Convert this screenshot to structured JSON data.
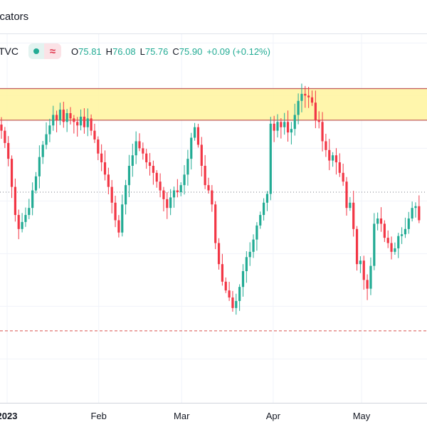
{
  "toolbar": {
    "indicators_label": "icators"
  },
  "legend": {
    "symbol": "TVC",
    "open_key": "O",
    "open": "75.81",
    "high_key": "H",
    "high": "76.08",
    "low_key": "L",
    "low": "75.76",
    "close_key": "C",
    "close": "75.90",
    "change": "+0.09 (+0.12%)"
  },
  "colors": {
    "up": "#22ab94",
    "down": "#f23645",
    "zone_fill": "#fff59d",
    "zone_border": "#c05a5a",
    "grid": "#f0f3fa"
  },
  "chart_data": {
    "type": "candlestick",
    "ylim": [
      65.5,
      86.5
    ],
    "zone": [
      81.6,
      83.4
    ],
    "hlines": [
      {
        "price": 77.5,
        "style": "dotted",
        "color": "#787b86"
      },
      {
        "price": 69.6,
        "style": "dashed",
        "color": "#d9534f"
      }
    ],
    "x_tick_labels": [
      {
        "label": "2023",
        "x": 2023.0,
        "year": true
      },
      {
        "label": "Feb",
        "x": 2023.085
      },
      {
        "label": "Mar",
        "x": 2023.162
      },
      {
        "label": "Apr",
        "x": 2023.247
      },
      {
        "label": "May",
        "x": 2023.329
      }
    ],
    "closes": [
      81.0,
      80.3,
      79.4,
      77.8,
      76.2,
      75.4,
      75.8,
      76.2,
      76.6,
      77.6,
      78.4,
      79.5,
      80.2,
      80.8,
      81.3,
      81.9,
      81.6,
      82.2,
      81.5,
      82.0,
      81.7,
      81.5,
      81.3,
      81.8,
      81.2,
      81.7,
      81.0,
      80.5,
      79.7,
      79.2,
      78.5,
      77.8,
      76.9,
      75.9,
      75.2,
      76.8,
      77.9,
      79.0,
      79.6,
      80.4,
      80.0,
      79.7,
      79.2,
      79.0,
      78.6,
      78.1,
      77.6,
      77.1,
      76.6,
      77.2,
      77.6,
      77.5,
      77.9,
      78.5,
      79.4,
      80.6,
      81.2,
      80.2,
      79.0,
      77.9,
      77.6,
      76.8,
      74.6,
      73.4,
      72.4,
      71.9,
      71.5,
      70.9,
      71.3,
      72.1,
      73.0,
      73.8,
      74.1,
      74.8,
      75.6,
      76.2,
      76.9,
      77.4,
      81.4,
      81.0,
      81.5,
      81.2,
      81.5,
      80.9,
      81.1,
      81.9,
      82.7,
      83.1,
      83.0,
      82.9,
      82.6,
      81.6,
      81.5,
      80.4,
      79.9,
      79.3,
      79.6,
      79.2,
      78.6,
      78.1,
      76.6,
      76.9,
      75.4,
      73.4,
      73.6,
      72.5,
      72.0,
      73.3,
      75.7,
      76.0,
      75.7,
      74.9,
      74.6,
      74.1,
      74.3,
      75.0,
      75.1,
      75.4,
      76.0,
      76.6,
      76.7,
      75.9
    ]
  }
}
